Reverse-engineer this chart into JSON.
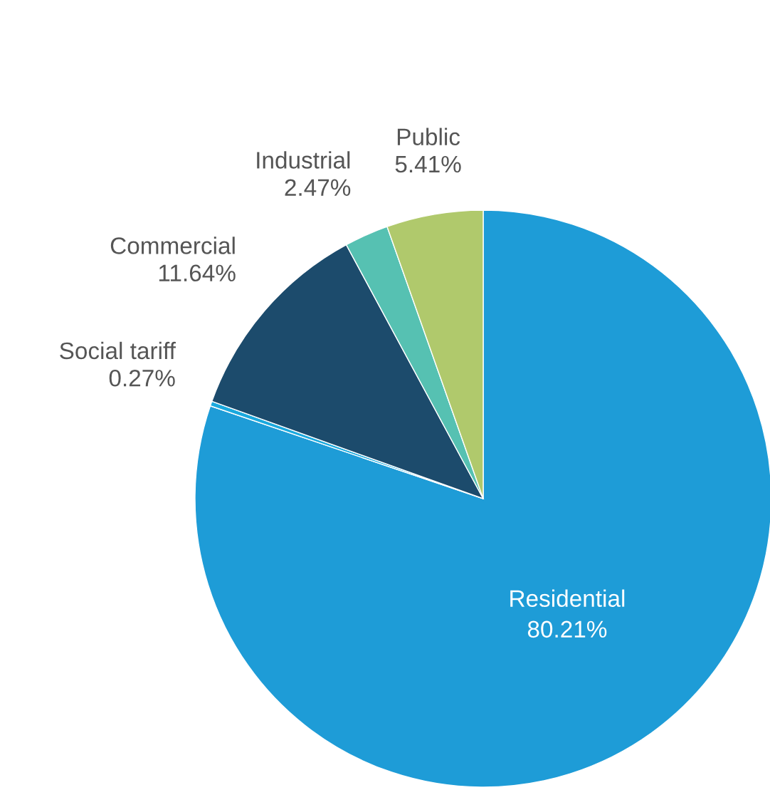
{
  "chart_data": {
    "type": "pie",
    "categories": [
      "Residential",
      "Social tariff",
      "Commercial",
      "Industrial",
      "Public"
    ],
    "values": [
      80.21,
      0.27,
      11.64,
      2.47,
      5.41
    ],
    "value_labels": [
      "80.21%",
      "0.27%",
      "11.64%",
      "2.47%",
      "5.41%"
    ],
    "colors": [
      "#1e9cd7",
      "#1aa9de",
      "#1c4b6c",
      "#56c1b2",
      "#b0c96c"
    ]
  }
}
